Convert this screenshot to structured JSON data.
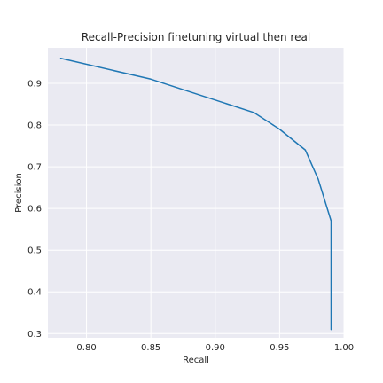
{
  "chart_data": {
    "type": "line",
    "title": "Recall-Precision finetuning virtual then real",
    "xlabel": "Recall",
    "ylabel": "Precision",
    "xlim": [
      0.77,
      1.0
    ],
    "ylim": [
      0.29,
      0.985
    ],
    "xticks": [
      "0.80",
      "0.85",
      "0.90",
      "0.95",
      "1.00"
    ],
    "yticks": [
      "0.3",
      "0.4",
      "0.5",
      "0.6",
      "0.7",
      "0.8",
      "0.9"
    ],
    "grid": true,
    "series": [
      {
        "color": "#1f77b4",
        "x": [
          0.78,
          0.85,
          0.93,
          0.95,
          0.97,
          0.98,
          0.99,
          0.99
        ],
        "y": [
          0.96,
          0.91,
          0.83,
          0.79,
          0.74,
          0.67,
          0.57,
          0.31
        ]
      }
    ]
  },
  "style": {
    "plot_background": "#eaeaf2",
    "grid_color": "#ffffff",
    "text_color": "#262626"
  }
}
